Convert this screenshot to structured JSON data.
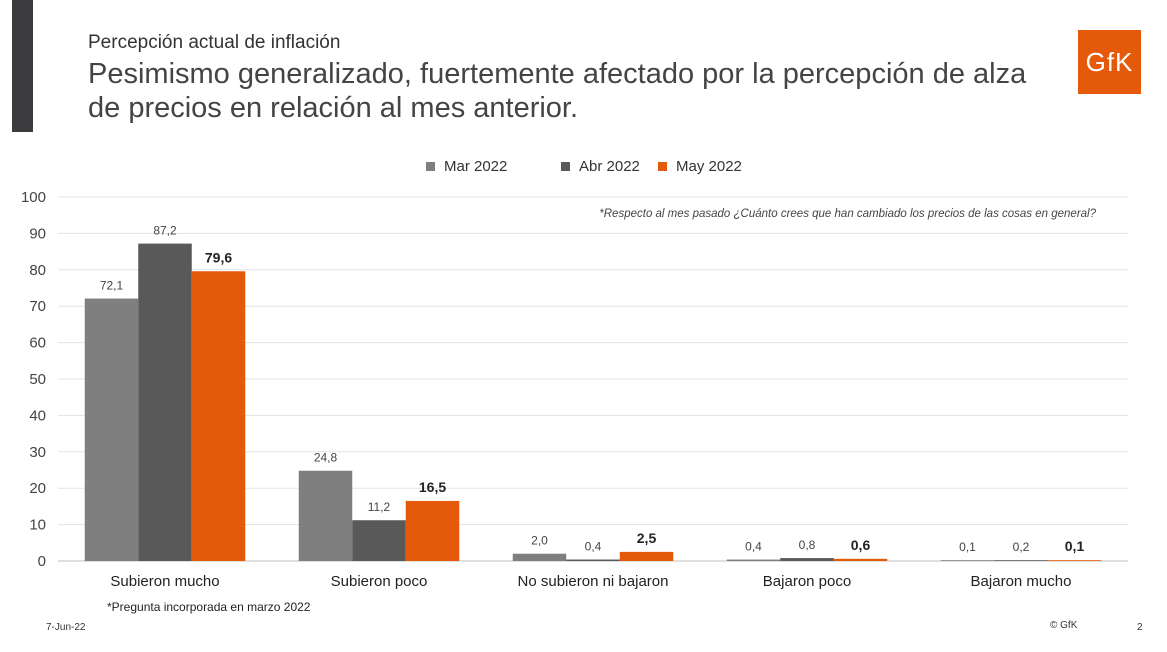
{
  "header": {
    "subtitle": "Percepción actual de inflación",
    "title": "Pesimismo generalizado, fuertemente afectado por la percepción de alza de precios en relación al mes anterior.",
    "logo_text": "GfK"
  },
  "colors": {
    "accent": "#e55a0a",
    "dark": "#595959",
    "gray": "#7f7f7f",
    "sidebar": "#3c3c3e"
  },
  "chart_data": {
    "type": "bar",
    "categories": [
      "Subieron mucho",
      "Subieron poco",
      "No subieron ni bajaron",
      "Bajaron poco",
      "Bajaron mucho"
    ],
    "series": [
      {
        "name": "Mar 2022",
        "color": "#7f7f7f",
        "values": [
          72.1,
          24.8,
          2.0,
          0.4,
          0.1
        ],
        "labels": [
          "72,1",
          "24,8",
          "2,0",
          "0,4",
          "0,1"
        ],
        "bold": false
      },
      {
        "name": "Abr 2022",
        "color": "#595959",
        "values": [
          87.2,
          11.2,
          0.4,
          0.8,
          0.2
        ],
        "labels": [
          "87,2",
          "11,2",
          "0,4",
          "0,8",
          "0,2"
        ],
        "bold": false
      },
      {
        "name": "May 2022",
        "color": "#e55a0a",
        "values": [
          79.6,
          16.5,
          2.5,
          0.6,
          0.1
        ],
        "labels": [
          "79,6",
          "16,5",
          "2,5",
          "0,6",
          "0,1"
        ],
        "bold": true
      }
    ],
    "yticks": [
      "0",
      "10",
      "20",
      "30",
      "40",
      "50",
      "60",
      "70",
      "80",
      "90",
      "100"
    ],
    "ylim": [
      0,
      100
    ],
    "grid": true,
    "legend": "top-center",
    "annotation": "*Respecto al mes pasado ¿Cuánto crees que han cambiado los precios de las cosas en general?"
  },
  "footer": {
    "note": "*Pregunta incorporada en marzo 2022",
    "date": "7-Jun-22",
    "copyright": "© GfK",
    "page": "2"
  }
}
